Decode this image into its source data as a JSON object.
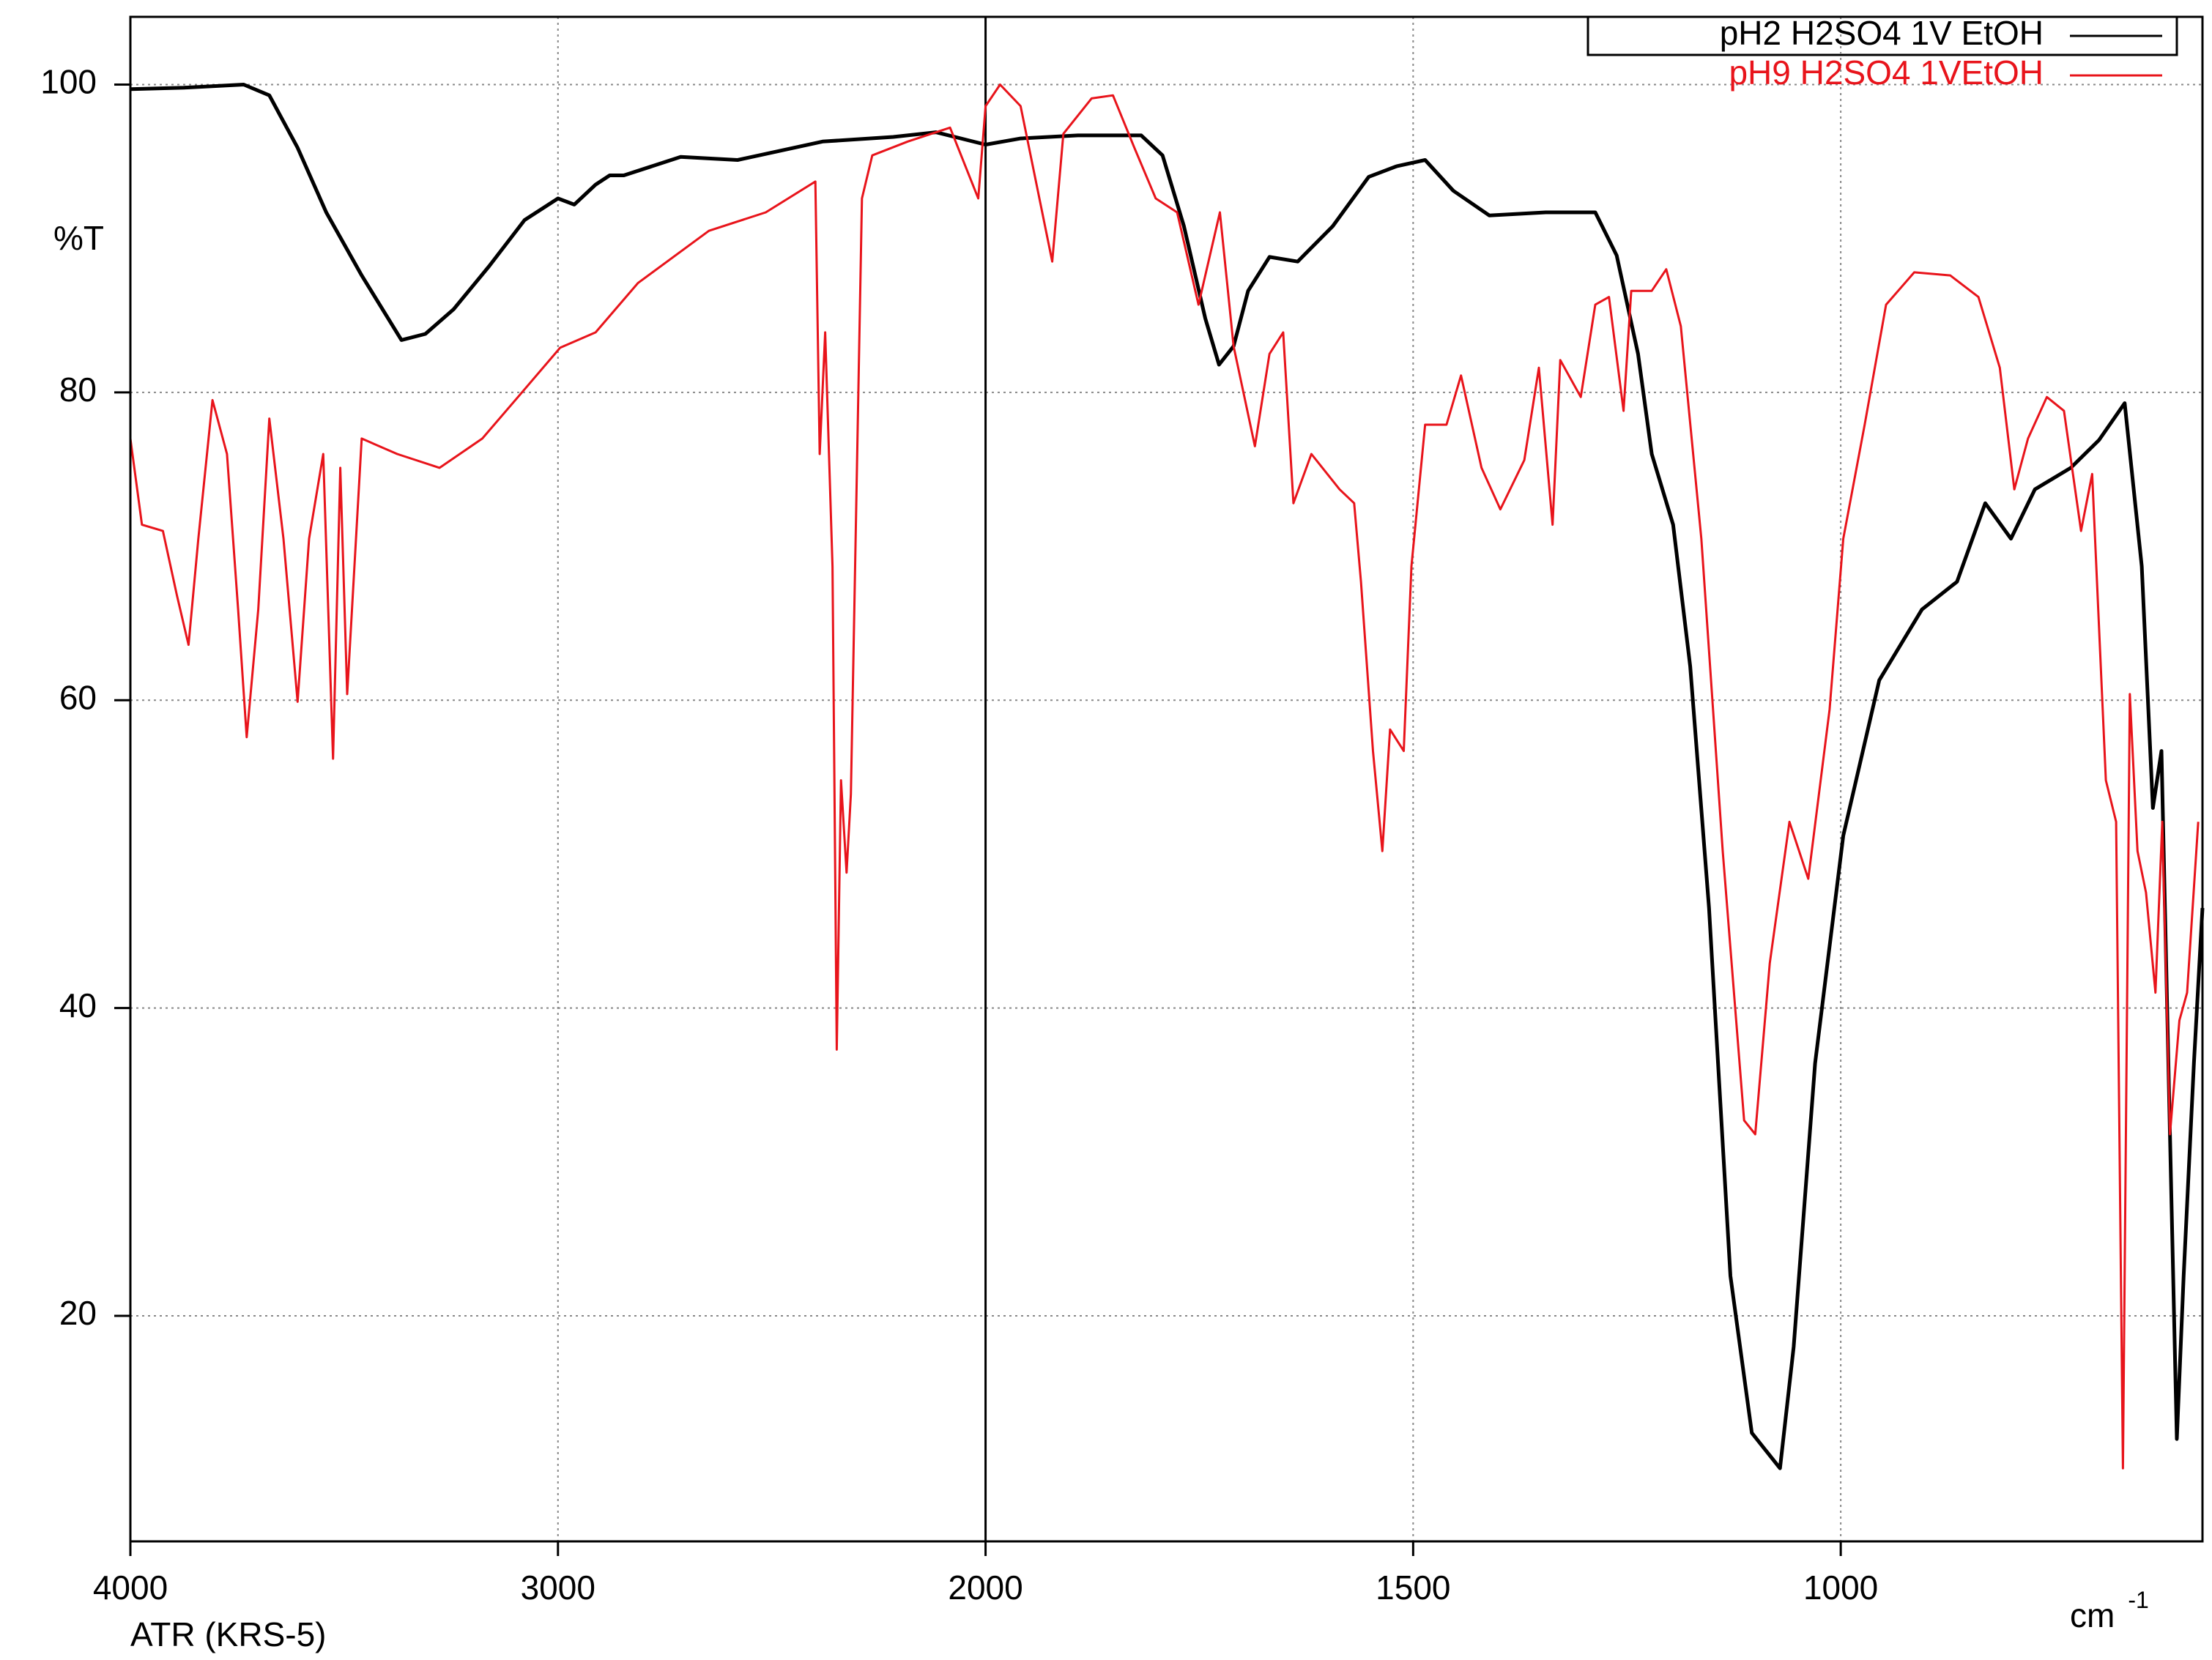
{
  "chart_data": {
    "type": "line",
    "y_label": "%T",
    "x_label": "cm",
    "x_label_sup": "-1",
    "subtitle": "ATR (KRS-5)",
    "xlim": [
      4000,
      577
    ],
    "xticks": [
      4000,
      3000,
      2000,
      1500,
      1000
    ],
    "x_break": 2000,
    "ylim": [
      5.35,
      104.4
    ],
    "yticks": [
      20,
      40,
      60,
      80,
      100
    ],
    "grid": true,
    "legend": "top-right",
    "series": [
      {
        "name": "pH2 H2SO4 1V EtOH",
        "color": "#000000",
        "x": [
          4000,
          3874,
          3735,
          3675,
          3609,
          3542,
          3459,
          3366,
          3310,
          3244,
          3161,
          3078,
          3000,
          2962,
          2912,
          2879,
          2846,
          2713,
          2580,
          2381,
          2216,
          2116,
          2000,
          1959,
          1892,
          1818,
          1793,
          1768,
          1743,
          1727,
          1710,
          1693,
          1668,
          1635,
          1594,
          1552,
          1519,
          1486,
          1453,
          1411,
          1345,
          1287,
          1262,
          1237,
          1221,
          1196,
          1176,
          1154,
          1129,
          1104,
          1071,
          1055,
          1030,
          997,
          955,
          905,
          864,
          831,
          801,
          773,
          731,
          698,
          668,
          648,
          635,
          625,
          615,
          607,
          599,
          587,
          577
        ],
        "values": [
          99.7,
          99.8,
          100,
          99.3,
          95.9,
          91.7,
          87.6,
          83.4,
          83.8,
          85.4,
          88.2,
          91.2,
          92.6,
          92.2,
          93.5,
          94.1,
          94.1,
          95.3,
          95.1,
          96.3,
          96.6,
          96.9,
          96.1,
          96.5,
          96.7,
          96.7,
          95.4,
          90.8,
          84.8,
          81.8,
          83,
          86.6,
          88.8,
          88.5,
          90.8,
          94,
          94.7,
          95.1,
          93.1,
          91.5,
          91.7,
          91.7,
          88.9,
          82.5,
          76,
          71.4,
          62.2,
          46.5,
          22.6,
          12.4,
          10.1,
          18,
          36.4,
          51.2,
          61.3,
          65.9,
          67.7,
          72.8,
          70.5,
          73.7,
          75.1,
          76.9,
          79.3,
          68.7,
          53,
          56.7,
          31.8,
          12,
          22.6,
          36.4,
          46.5
        ]
      },
      {
        "name": "pH9 H2SO4 1VEtOH",
        "color": "#e8141b",
        "x": [
          4000,
          3973,
          3924,
          3891,
          3864,
          3841,
          3808,
          3774,
          3748,
          3728,
          3701,
          3675,
          3642,
          3609,
          3582,
          3549,
          3526,
          3509,
          3493,
          3459,
          3376,
          3277,
          3177,
          3078,
          2995,
          2912,
          2813,
          2647,
          2514,
          2398,
          2388,
          2375,
          2358,
          2348,
          2338,
          2325,
          2315,
          2289,
          2265,
          2182,
          2083,
          2017,
          2000,
          1983,
          1959,
          1922,
          1909,
          1876,
          1851,
          1826,
          1801,
          1776,
          1751,
          1726,
          1710,
          1685,
          1668,
          1652,
          1640,
          1619,
          1586,
          1569,
          1561,
          1547,
          1536,
          1527,
          1511,
          1502,
          1486,
          1461,
          1444,
          1420,
          1398,
          1370,
          1353,
          1337,
          1328,
          1304,
          1287,
          1271,
          1254,
          1245,
          1221,
          1204,
          1187,
          1163,
          1138,
          1113,
          1100,
          1083,
          1060,
          1038,
          1013,
          997,
          972,
          947,
          914,
          872,
          839,
          814,
          797,
          781,
          759,
          739,
          719,
          706,
          690,
          678,
          670,
          662,
          653,
          643,
          632,
          624,
          615,
          604,
          595,
          582
        ],
        "values": [
          77,
          71.4,
          71,
          66.8,
          63.6,
          70.5,
          79.5,
          76,
          65.9,
          57.6,
          65.9,
          78.3,
          70.5,
          59.9,
          70.5,
          76,
          56.2,
          75.1,
          60.4,
          77,
          76,
          75.1,
          77,
          80.2,
          82.9,
          83.9,
          87.1,
          90.5,
          91.7,
          93.7,
          76,
          83.9,
          68.7,
          37.3,
          54.8,
          48.8,
          53.9,
          92.6,
          95.4,
          96.3,
          97.2,
          92.6,
          98.6,
          100,
          98.6,
          88.5,
          96.8,
          99.1,
          99.3,
          95.9,
          92.6,
          91.7,
          85.7,
          91.7,
          83,
          76.5,
          82.5,
          83.9,
          72.8,
          76,
          73.7,
          72.8,
          67.7,
          56.7,
          50.2,
          58.1,
          56.7,
          68.7,
          77.9,
          77.9,
          81.1,
          75.1,
          72.4,
          75.6,
          81.6,
          71.4,
          82.1,
          79.7,
          85.7,
          86.2,
          78.8,
          86.6,
          86.6,
          88,
          84.3,
          70.5,
          50.2,
          32.7,
          31.8,
          42.9,
          52.1,
          48.4,
          59.4,
          70.5,
          77.9,
          85.7,
          87.8,
          87.6,
          86.2,
          81.6,
          73.7,
          77,
          79.7,
          78.8,
          71,
          74.7,
          54.8,
          52.1,
          10.1,
          60.4,
          50.2,
          47.5,
          41,
          52.1,
          31.8,
          39.2,
          41,
          52.1
        ]
      }
    ]
  }
}
